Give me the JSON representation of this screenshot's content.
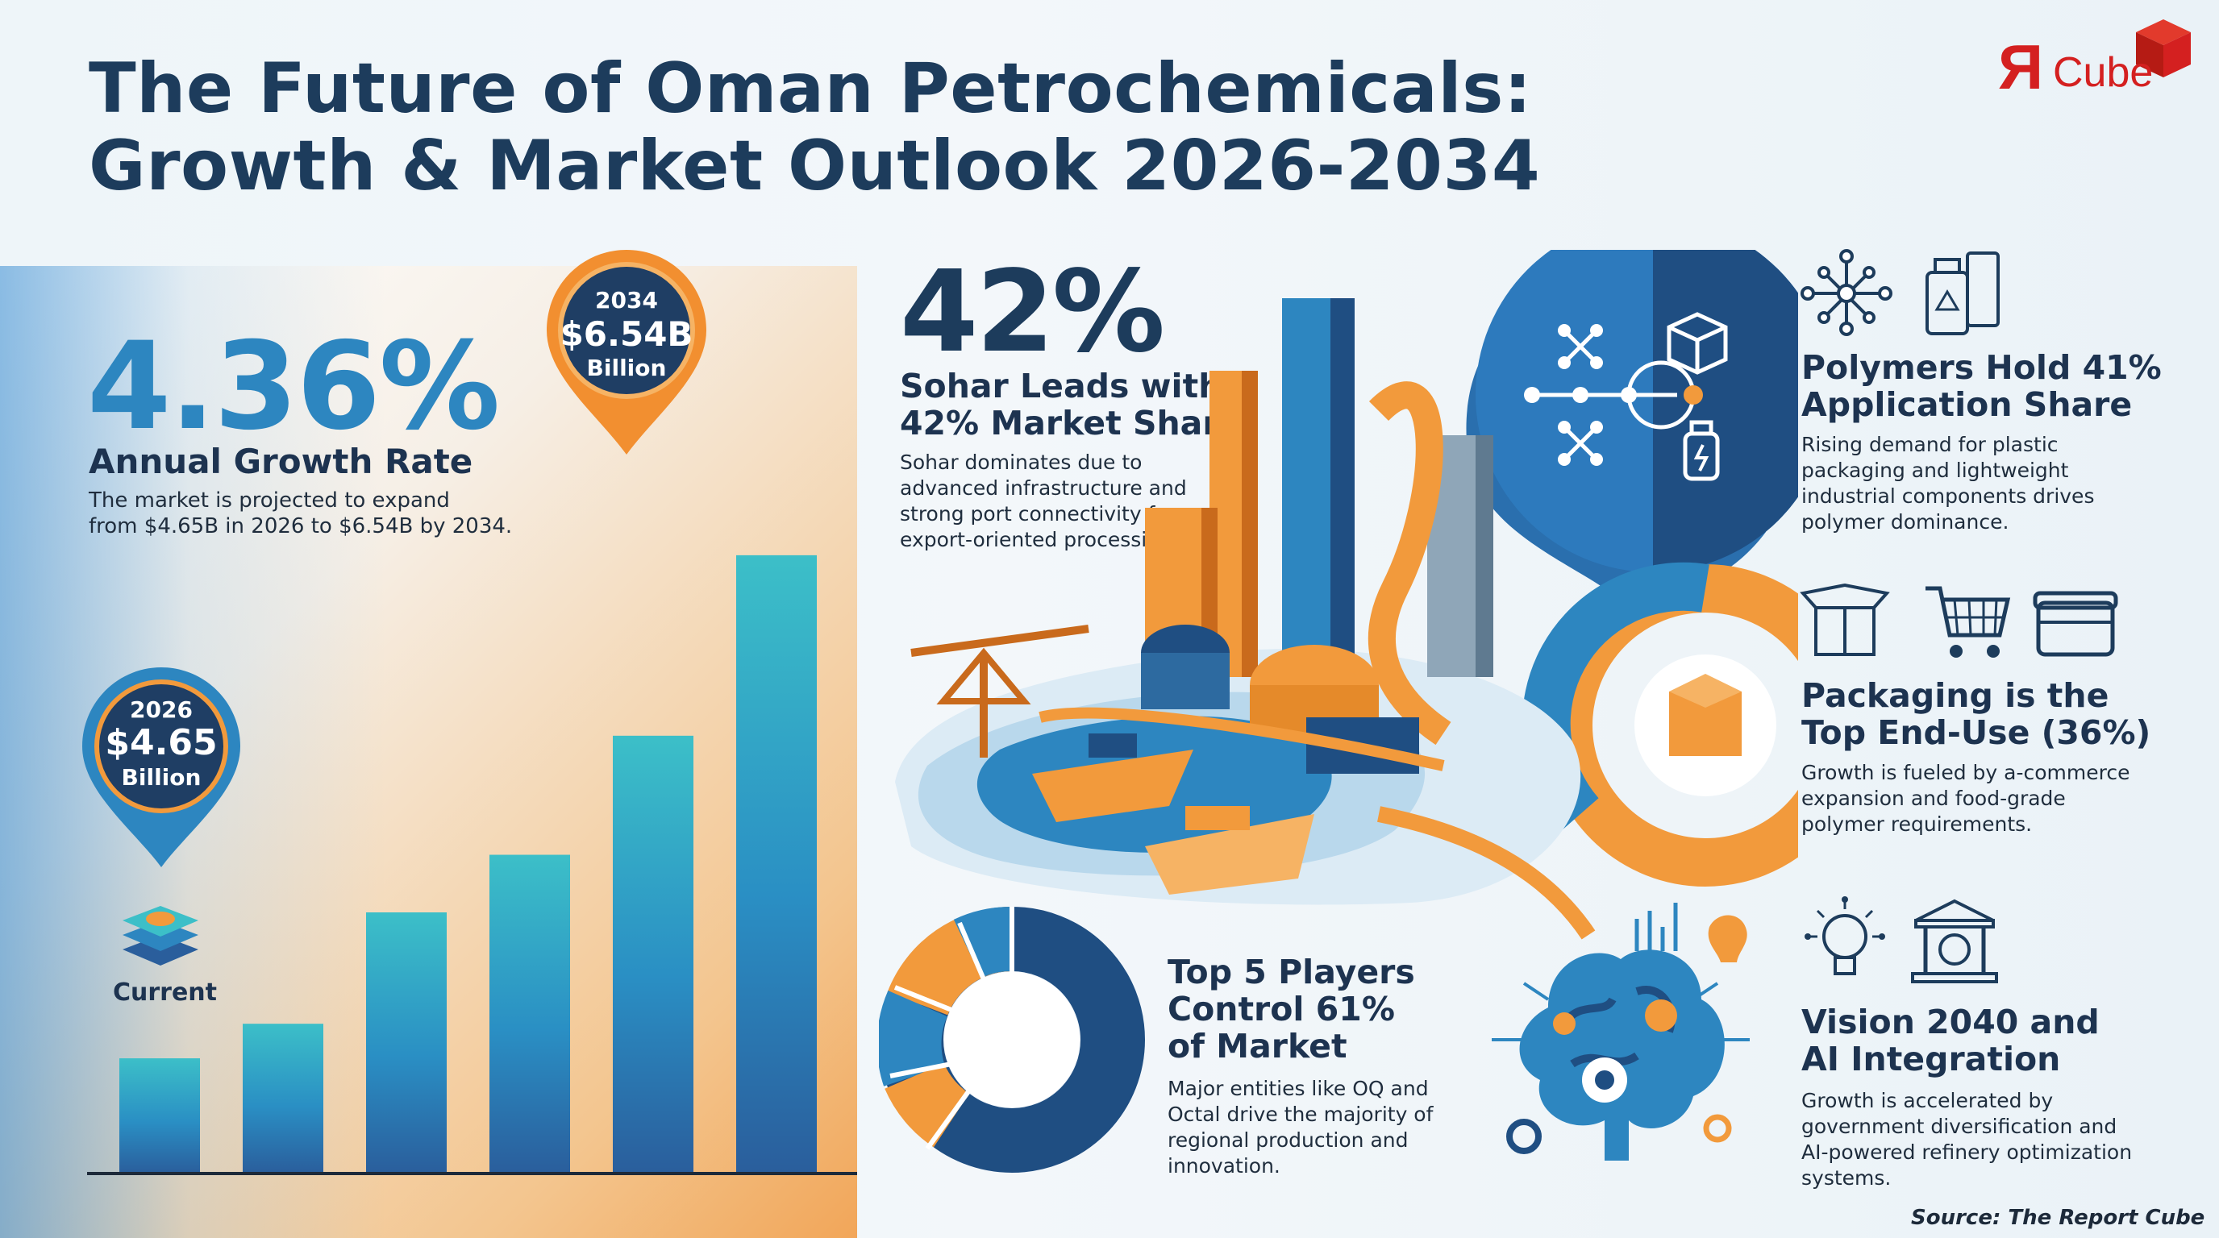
{
  "title": {
    "line1": "The Future of Oman Petrochemicals:",
    "line2": "Growth & Market Outlook 2026-2034"
  },
  "logo": {
    "mark": "Я",
    "text": "Cube"
  },
  "growth": {
    "value": "4.36%",
    "heading": "Annual Growth Rate",
    "desc_line1": "The market is projected to expand",
    "desc_line2": "from $4.65B in 2026 to $6.54B by 2034."
  },
  "pin_2034": {
    "year": "2034",
    "value": "$6.54B",
    "unit": "Billion"
  },
  "pin_2026": {
    "year": "2026",
    "value": "$4.65",
    "unit": "Billion"
  },
  "current_label": "Current",
  "chart_data": {
    "type": "bar",
    "title": "",
    "xlabel": "",
    "ylabel": "",
    "values": [
      1.5,
      1.95,
      3.4,
      4.15,
      5.7,
      8.05
    ],
    "ylim": [
      0,
      8.5
    ]
  },
  "sohar": {
    "value": "42%",
    "heading_line1": "Sohar Leads with",
    "heading_line2": "42% Market Share",
    "desc_line1": "Sohar dominates due to",
    "desc_line2": "advanced infrastructure and",
    "desc_line3": "strong port connectivity for",
    "desc_line4": "export-oriented processing."
  },
  "polymers": {
    "heading_line1": "Polymers Hold 41%",
    "heading_line2": "Application Share",
    "desc_line1": "Rising demand for plastic",
    "desc_line2": "packaging and lightweight",
    "desc_line3": "industrial components drives",
    "desc_line4": "polymer dominance."
  },
  "packaging": {
    "heading_line1": "Packaging is the",
    "heading_line2": "Top End-Use (36%)",
    "desc_line1": "Growth is fueled by a-commerce",
    "desc_line2": "expansion and food-grade",
    "desc_line3": "polymer requirements."
  },
  "players": {
    "heading_line1": "Top 5 Players",
    "heading_line2": "Control 61%",
    "heading_line3": "of Market",
    "desc_line1": "Major entities like OQ and",
    "desc_line2": "Octal drive the majority of",
    "desc_line3": "regional production and",
    "desc_line4": "innovation."
  },
  "vision": {
    "heading_line1": "Vision 2040 and",
    "heading_line2": "AI Integration",
    "desc_line1": "Growth is accelerated by",
    "desc_line2": "government diversification and",
    "desc_line3": "AI-powered refinery optimization",
    "desc_line4": "systems."
  },
  "source": "Source: The Report Cube",
  "colors": {
    "navy": "#1d3c5c",
    "blue": "#2d86c0",
    "teal": "#3cbfc8",
    "orange": "#f29a3c",
    "red": "#d42020"
  },
  "icons": [
    "molecule-icon",
    "recycle-bag-icon",
    "box-icon",
    "cart-icon",
    "container-icon",
    "brain-bulb-icon",
    "bank-gear-icon",
    "ai-brain-icon",
    "layers-icon",
    "refinery-illustration"
  ]
}
